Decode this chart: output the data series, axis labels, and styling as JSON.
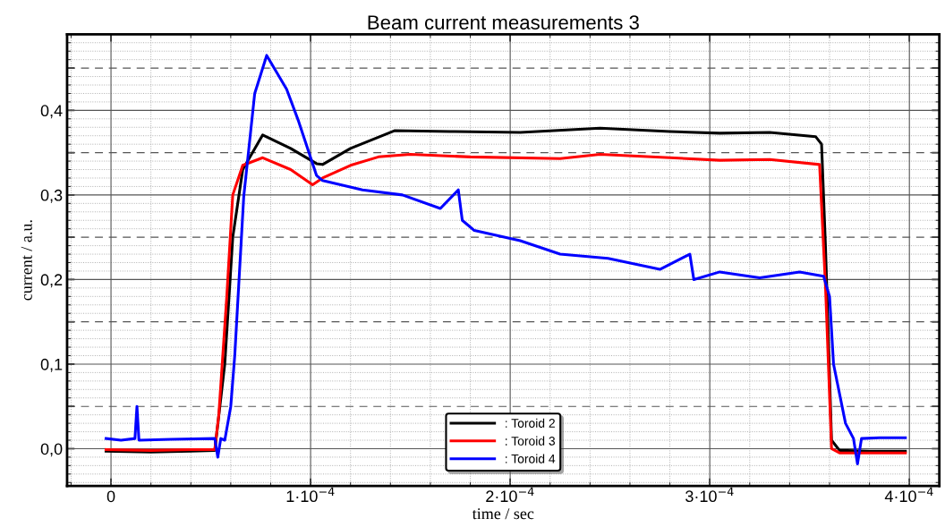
{
  "chart_data": {
    "type": "line",
    "title": "Beam current measurements 3",
    "xlabel": "time / sec",
    "ylabel": "current / a.u.",
    "xlim": [
      -2.2e-05,
      0.000415
    ],
    "ylim": [
      -0.044,
      0.49
    ],
    "xticks": [
      {
        "value": 0,
        "label": "0"
      },
      {
        "value": 0.0001,
        "label": "1·10$^{−4}$"
      },
      {
        "value": 0.0002,
        "label": "2·10$^{−4}$"
      },
      {
        "value": 0.0003,
        "label": "3·10$^{−4}$"
      },
      {
        "value": 0.0004,
        "label": "4·10$^{−4}$"
      }
    ],
    "yticks": [
      {
        "value": 0,
        "label": "0,0"
      },
      {
        "value": 0.05,
        "label": null
      },
      {
        "value": 0.1,
        "label": "0,1"
      },
      {
        "value": 0.15,
        "label": null
      },
      {
        "value": 0.2,
        "label": "0,2"
      },
      {
        "value": 0.25,
        "label": null
      },
      {
        "value": 0.3,
        "label": "0,3"
      },
      {
        "value": 0.35,
        "label": null
      },
      {
        "value": 0.4,
        "label": "0,4"
      },
      {
        "value": 0.45,
        "label": null
      }
    ],
    "grid": true,
    "legend": "bottom",
    "line_style": "solid",
    "marker": "none",
    "series": [
      {
        "name": ": Toroid 2",
        "color": "#000000",
        "x": [
          -2.5e-06,
          2e-05,
          4e-05,
          5.2e-05,
          5.7e-05,
          6.1e-05,
          6.6e-05,
          7.6e-05,
          9e-05,
          0.000103,
          0.000106,
          0.00012,
          0.000142,
          0.00017,
          0.000205,
          0.000245,
          0.00028,
          0.000305,
          0.00033,
          0.000353,
          0.000356,
          0.000358,
          0.000361,
          0.000365,
          0.00038,
          0.000398
        ],
        "values": [
          -0.003,
          -0.004,
          -0.003,
          -0.002,
          0.1,
          0.25,
          0.33,
          0.371,
          0.355,
          0.337,
          0.336,
          0.355,
          0.376,
          0.375,
          0.374,
          0.379,
          0.375,
          0.373,
          0.374,
          0.369,
          0.36,
          0.237,
          0.01,
          -0.002,
          -0.003,
          -0.003
        ]
      },
      {
        "name": ": Toroid 3",
        "color": "#ff0000",
        "x": [
          -2.5e-06,
          2e-05,
          4e-05,
          5.2e-05,
          5.4e-05,
          5.8e-05,
          6.1e-05,
          6.6e-05,
          7.6e-05,
          9e-05,
          0.000101,
          0.000106,
          0.00012,
          0.000134,
          0.00015,
          0.00018,
          0.000225,
          0.000245,
          0.00028,
          0.000305,
          0.00033,
          0.000355,
          0.000358,
          0.000361,
          0.000365,
          0.00038,
          0.000398
        ],
        "values": [
          -0.001,
          -0.002,
          -0.001,
          -0.001,
          0.04,
          0.18,
          0.3,
          0.335,
          0.344,
          0.33,
          0.312,
          0.32,
          0.335,
          0.345,
          0.348,
          0.345,
          0.343,
          0.348,
          0.344,
          0.341,
          0.342,
          0.336,
          0.19,
          0.0,
          -0.005,
          -0.005,
          -0.005
        ]
      },
      {
        "name": ": Toroid 4",
        "color": "#0000ff",
        "x": [
          -2.5e-06,
          5e-06,
          1.2e-05,
          1.3e-05,
          1.4e-05,
          3e-05,
          5.2e-05,
          5.35e-05,
          5.5e-05,
          5.7e-05,
          6e-05,
          6.2e-05,
          6.65e-05,
          7.2e-05,
          7.8e-05,
          8.8e-05,
          9.4e-05,
          0.000103,
          0.000106,
          0.000126,
          0.000146,
          0.000165,
          0.000174,
          0.000176,
          0.000182,
          0.000205,
          0.000225,
          0.000249,
          0.000275,
          0.00029,
          0.000292,
          0.000305,
          0.000325,
          0.000345,
          0.000357,
          0.00036,
          0.000362,
          0.000368,
          0.000372,
          0.000374,
          0.000376,
          0.000385,
          0.000398
        ],
        "values": [
          0.012,
          0.01,
          0.012,
          0.05,
          0.01,
          0.011,
          0.012,
          -0.01,
          0.012,
          0.01,
          0.05,
          0.11,
          0.298,
          0.42,
          0.465,
          0.425,
          0.387,
          0.323,
          0.317,
          0.306,
          0.3,
          0.284,
          0.306,
          0.27,
          0.258,
          0.246,
          0.23,
          0.225,
          0.212,
          0.23,
          0.2,
          0.209,
          0.202,
          0.209,
          0.204,
          0.18,
          0.1,
          0.03,
          0.012,
          -0.018,
          0.012,
          0.013,
          0.013
        ]
      }
    ]
  }
}
